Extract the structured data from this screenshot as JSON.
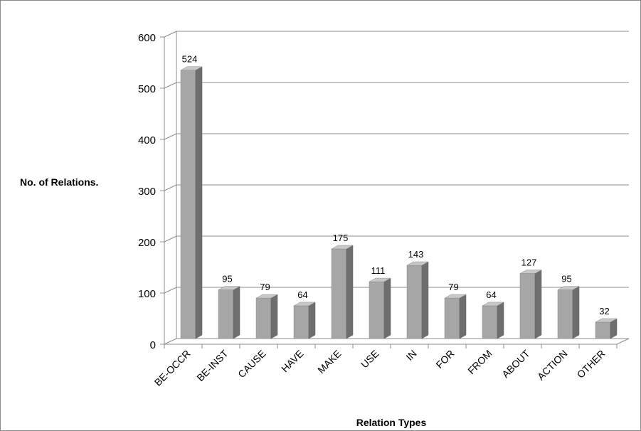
{
  "chart_data": {
    "type": "bar",
    "style": "3d-column",
    "title": "",
    "xlabel": "Relation Types",
    "ylabel": "No. of Relations.",
    "categories": [
      "BE-OCCR",
      "BE-INST",
      "CAUSE",
      "HAVE",
      "MAKE",
      "USE",
      "IN",
      "FOR",
      "FROM",
      "ABOUT",
      "ACTION",
      "OTHER"
    ],
    "series": [
      {
        "values": [
          524,
          95,
          79,
          64,
          175,
          111,
          143,
          79,
          64,
          127,
          95,
          32
        ]
      }
    ],
    "data_labels": [
      "524",
      "95",
      "79",
      "64",
      "175",
      "111",
      "143",
      "79",
      "64",
      "127",
      "95",
      "32"
    ],
    "ylim": [
      0,
      600
    ],
    "yticks": [
      0,
      100,
      200,
      300,
      400,
      500,
      600
    ],
    "ytick_labels": [
      "0",
      "100",
      "200",
      "300",
      "400",
      "500",
      "600"
    ],
    "grid": true,
    "legend": "none",
    "colors": {
      "bar_front": "#a6a6a6",
      "bar_side": "#6e6e6e",
      "bar_top": "#c8c8c8",
      "gridline": "#8c8c8c",
      "axis": "#8c8c8c"
    }
  }
}
